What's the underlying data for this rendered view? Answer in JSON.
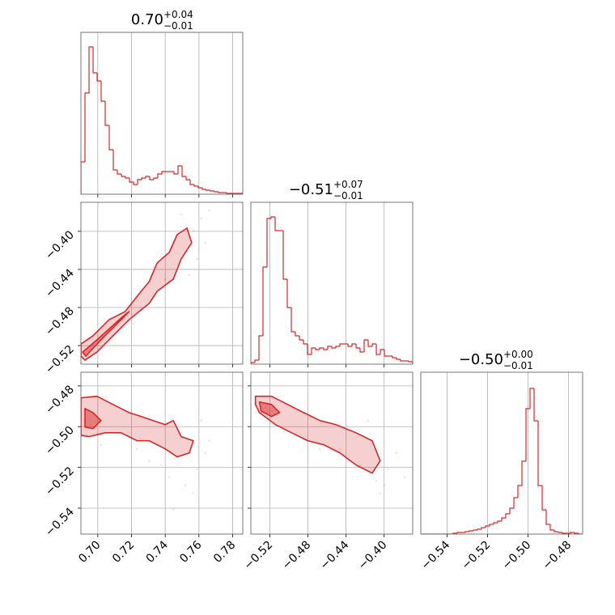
{
  "chart_data": [
    {
      "type": "histogram",
      "title": "0.70",
      "title_sup": "+0.04",
      "title_sub": "−0.01",
      "color": "#d62728",
      "bins": [
        0.69,
        0.6924,
        0.6948,
        0.6972,
        0.6996,
        0.702,
        0.7044,
        0.7068,
        0.7092,
        0.7116,
        0.714,
        0.7164,
        0.7188,
        0.7212,
        0.7236,
        0.726,
        0.7284,
        0.7308,
        0.7332,
        0.7356,
        0.738,
        0.7404,
        0.7428,
        0.7452,
        0.7476,
        0.75,
        0.7524,
        0.7548,
        0.7572,
        0.7596,
        0.762,
        0.7644,
        0.7668,
        0.7692,
        0.7716,
        0.774,
        0.7764,
        0.7788,
        0.7812,
        0.7836,
        0.786
      ],
      "counts": [
        40,
        125,
        182,
        150,
        140,
        115,
        85,
        55,
        30,
        25,
        22,
        20,
        15,
        12,
        18,
        20,
        22,
        18,
        20,
        25,
        28,
        28,
        28,
        25,
        35,
        22,
        18,
        12,
        10,
        8,
        6,
        5,
        4,
        3,
        2,
        2,
        1,
        1,
        1,
        1
      ],
      "xlim": [
        0.69,
        0.786
      ],
      "xticks": [
        0.7,
        0.72,
        0.74,
        0.76,
        0.78
      ],
      "ylim": [
        0,
        200
      ],
      "grid": true
    },
    {
      "type": "contour",
      "color": "#d62728",
      "contours": [
        {
          "x": [
            0.69,
            0.69,
            0.6971,
            0.7067,
            0.7162,
            0.7257,
            0.7305,
            0.7352,
            0.7424,
            0.7471,
            0.7529,
            0.7557,
            0.7495,
            0.7448,
            0.7352,
            0.7305,
            0.7186,
            0.709,
            0.6995,
            0.6924
          ],
          "y": [
            -0.5311,
            -0.5183,
            -0.5098,
            -0.4928,
            -0.4843,
            -0.463,
            -0.4528,
            -0.4332,
            -0.4221,
            -0.4034,
            -0.3966,
            -0.4119,
            -0.4289,
            -0.4502,
            -0.463,
            -0.4757,
            -0.4928,
            -0.5098,
            -0.5268,
            -0.5353
          ]
        },
        {
          "x": [
            0.691,
            0.6995,
            0.7138,
            0.7186,
            0.7114,
            0.7019,
            0.6929
          ],
          "y": [
            -0.5268,
            -0.514,
            -0.4911,
            -0.4843,
            -0.497,
            -0.514,
            -0.5311
          ]
        }
      ],
      "points": {
        "x": [
          0.7567,
          0.7614,
          0.7638,
          0.759,
          0.7543,
          0.74,
          0.7329,
          0.7495,
          0.7662,
          0.7257,
          0.7114,
          0.721
        ],
        "y": [
          -0.3991,
          -0.3864,
          -0.4119,
          -0.4289,
          -0.446,
          -0.4502,
          -0.4374,
          -0.3821,
          -0.3779,
          -0.48,
          -0.5055,
          -0.497
        ]
      },
      "xlim": [
        0.69,
        0.786
      ],
      "xticks": [
        0.7,
        0.72,
        0.74,
        0.76,
        0.78
      ],
      "ylim": [
        -0.5395,
        -0.3695
      ],
      "yticks": [
        {
          "value": -0.52,
          "label": "−0.52"
        },
        {
          "value": -0.48,
          "label": "−0.48"
        },
        {
          "value": -0.44,
          "label": "−0.44"
        },
        {
          "value": -0.4,
          "label": "−0.40"
        }
      ],
      "grid": true
    },
    {
      "type": "histogram",
      "title": "−0.51",
      "title_sup": "+0.07",
      "title_sub": "−0.01",
      "color": "#d62728",
      "bins": [
        -0.54,
        -0.53575,
        -0.5315,
        -0.52725,
        -0.523,
        -0.51875,
        -0.5145,
        -0.51025,
        -0.506,
        -0.50175,
        -0.4975,
        -0.49325,
        -0.489,
        -0.48475,
        -0.4805,
        -0.47625,
        -0.472,
        -0.46775,
        -0.4635,
        -0.45925,
        -0.455,
        -0.45075,
        -0.4465,
        -0.44225,
        -0.438,
        -0.43375,
        -0.4295,
        -0.42525,
        -0.421,
        -0.41675,
        -0.4125,
        -0.40825,
        -0.404,
        -0.39975,
        -0.3955,
        -0.39125,
        -0.387,
        -0.38275,
        -0.3785,
        -0.37425,
        -0.37
      ],
      "counts": [
        2,
        5,
        35,
        120,
        180,
        182,
        165,
        165,
        105,
        70,
        40,
        35,
        30,
        25,
        12,
        20,
        18,
        20,
        18,
        22,
        20,
        22,
        25,
        25,
        22,
        25,
        20,
        15,
        30,
        22,
        25,
        12,
        18,
        10,
        10,
        8,
        6,
        4,
        4,
        3
      ],
      "xlim": [
        -0.54,
        -0.37
      ],
      "xticks": [
        -0.52,
        -0.48,
        -0.44,
        -0.4
      ],
      "ylim": [
        0,
        200
      ],
      "grid": true
    },
    {
      "type": "contour",
      "color": "#d62728",
      "contours": [
        {
          "x": [
            0.69,
            0.6995,
            0.709,
            0.7186,
            0.7257,
            0.7329,
            0.74,
            0.7448,
            0.7495,
            0.7567,
            0.7543,
            0.7471,
            0.74,
            0.7305,
            0.7233,
            0.7138,
            0.7043,
            0.6948,
            0.69
          ],
          "y": [
            -0.4859,
            -0.4851,
            -0.4891,
            -0.4931,
            -0.495,
            -0.497,
            -0.499,
            -0.497,
            -0.5049,
            -0.5069,
            -0.5129,
            -0.5148,
            -0.5109,
            -0.5069,
            -0.5069,
            -0.503,
            -0.503,
            -0.5049,
            -0.5042
          ]
        },
        {
          "x": [
            0.6924,
            0.6971,
            0.7019,
            0.6971,
            0.6924
          ],
          "y": [
            -0.4911,
            -0.4931,
            -0.497,
            -0.501,
            -0.5002
          ]
        }
      ],
      "points": {
        "x": [
          0.7614,
          0.759,
          0.7519,
          0.7424,
          0.7305,
          0.7662,
          0.7376,
          0.7233,
          0.7567,
          0.7019,
          0.7448,
          0.7638
        ],
        "y": [
          -0.497,
          -0.5208,
          -0.5287,
          -0.5247,
          -0.5168,
          -0.5069,
          -0.5188,
          -0.5109,
          -0.5327,
          -0.5089,
          -0.5406,
          -0.5129
        ]
      },
      "xlim": [
        0.69,
        0.786
      ],
      "xticks": [
        {
          "value": 0.7,
          "label": "0.70"
        },
        {
          "value": 0.72,
          "label": "0.72"
        },
        {
          "value": 0.74,
          "label": "0.74"
        },
        {
          "value": 0.76,
          "label": "0.76"
        },
        {
          "value": 0.78,
          "label": "0.78"
        }
      ],
      "ylim": [
        -0.5527,
        -0.4733
      ],
      "yticks": [
        {
          "value": -0.54,
          "label": "−0.54"
        },
        {
          "value": -0.52,
          "label": "−0.52"
        },
        {
          "value": -0.5,
          "label": "−0.50"
        },
        {
          "value": -0.48,
          "label": "−0.48"
        }
      ],
      "grid": true
    },
    {
      "type": "contour",
      "color": "#d62728",
      "contours": [
        {
          "x": [
            -0.5352,
            -0.5183,
            -0.5014,
            -0.4845,
            -0.4675,
            -0.4506,
            -0.4295,
            -0.4126,
            -0.4041,
            -0.4126,
            -0.4295,
            -0.4464,
            -0.4633,
            -0.4802,
            -0.4972,
            -0.5141,
            -0.531,
            -0.5352
          ],
          "y": [
            -0.4851,
            -0.4851,
            -0.4891,
            -0.4931,
            -0.497,
            -0.499,
            -0.503,
            -0.5069,
            -0.5168,
            -0.5228,
            -0.5188,
            -0.5129,
            -0.5089,
            -0.5069,
            -0.503,
            -0.499,
            -0.4931,
            -0.4891
          ]
        },
        {
          "x": [
            -0.531,
            -0.5183,
            -0.5098,
            -0.5183,
            -0.5293
          ],
          "y": [
            -0.4879,
            -0.4891,
            -0.4931,
            -0.495,
            -0.4923
          ]
        }
      ],
      "points": {
        "x": [
          -0.3956,
          -0.3999,
          -0.4083,
          -0.4252,
          -0.4379,
          -0.3872,
          -0.4464,
          -0.4168,
          -0.3787,
          -0.4675,
          -0.4041,
          -0.5056
        ],
        "y": [
          -0.5208,
          -0.5287,
          -0.5267,
          -0.5188,
          -0.5168,
          -0.5129,
          -0.5109,
          -0.497,
          -0.5247,
          -0.5109,
          -0.5327,
          -0.501
        ]
      },
      "xlim": [
        -0.54,
        -0.37
      ],
      "xticks": [
        {
          "value": -0.52,
          "label": "−0.52"
        },
        {
          "value": -0.48,
          "label": "−0.48"
        },
        {
          "value": -0.44,
          "label": "−0.44"
        },
        {
          "value": -0.4,
          "label": "−0.40"
        }
      ],
      "ylim": [
        -0.5527,
        -0.4733
      ],
      "yticks": [
        -0.54,
        -0.52,
        -0.5,
        -0.48
      ],
      "grid": true
    },
    {
      "type": "histogram",
      "title": "−0.50",
      "title_sup": "+0.00",
      "title_sub": "−0.01",
      "color": "#d62728",
      "bins": [
        -0.553,
        -0.551,
        -0.549,
        -0.547,
        -0.545,
        -0.543,
        -0.541,
        -0.539,
        -0.537,
        -0.535,
        -0.533,
        -0.531,
        -0.529,
        -0.527,
        -0.525,
        -0.523,
        -0.521,
        -0.519,
        -0.517,
        -0.515,
        -0.513,
        -0.511,
        -0.509,
        -0.507,
        -0.505,
        -0.503,
        -0.501,
        -0.499,
        -0.497,
        -0.495,
        -0.493,
        -0.491,
        -0.489,
        -0.487,
        -0.485,
        -0.483,
        -0.481,
        -0.479,
        -0.477,
        -0.475,
        -0.473
      ],
      "counts": [
        0,
        0,
        0,
        0,
        0,
        0,
        0,
        0,
        1,
        2,
        2,
        3,
        4,
        5,
        6,
        8,
        10,
        12,
        14,
        16,
        20,
        25,
        32,
        45,
        60,
        90,
        155,
        180,
        140,
        60,
        30,
        12,
        5,
        3,
        2,
        1,
        1,
        2,
        1,
        0
      ],
      "xlim": [
        -0.553,
        -0.473
      ],
      "xticks": [
        {
          "value": -0.54,
          "label": "−0.54"
        },
        {
          "value": -0.52,
          "label": "−0.52"
        },
        {
          "value": -0.5,
          "label": "−0.50"
        },
        {
          "value": -0.48,
          "label": "−0.48"
        }
      ],
      "ylim": [
        0,
        200
      ],
      "grid": true
    }
  ]
}
